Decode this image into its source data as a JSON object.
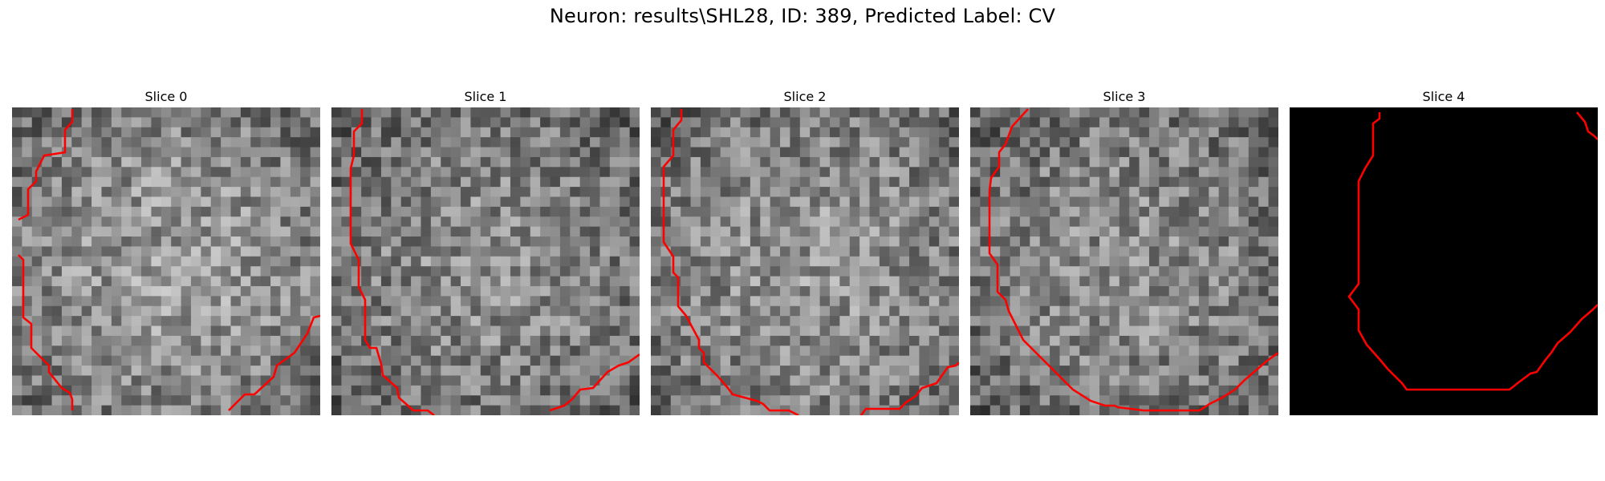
{
  "figure": {
    "title": "Neuron: results\\SHL28, ID: 389, Predicted Label: CV"
  },
  "colors": {
    "contour": "#ff0000",
    "background": "#ffffff",
    "empty_slice": "#000000"
  },
  "slices": [
    {
      "title": "Slice 0",
      "kind": "noise",
      "seed": 11,
      "brightness": 0.6
    },
    {
      "title": "Slice 1",
      "kind": "noise",
      "seed": 23,
      "brightness": 0.55
    },
    {
      "title": "Slice 2",
      "kind": "noise",
      "seed": 37,
      "brightness": 0.58
    },
    {
      "title": "Slice 3",
      "kind": "noise",
      "seed": 51,
      "brightness": 0.55
    },
    {
      "title": "Slice 4",
      "kind": "black",
      "seed": 0,
      "brightness": 0.0
    }
  ]
}
